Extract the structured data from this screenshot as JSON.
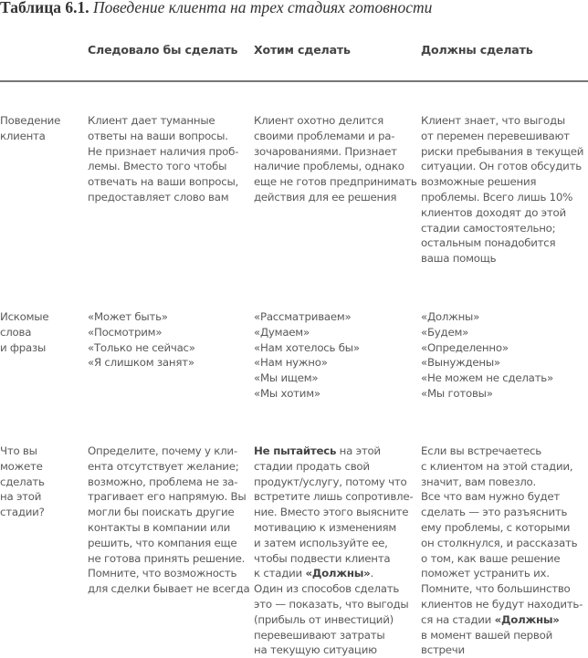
{
  "title": {
    "label": "Таблица 6.1.",
    "text": "Поведение клиента на трех стадиях готовности"
  },
  "columns": [
    "Следовало бы сделать",
    "Хотим сделать",
    "Должны сделать"
  ],
  "rows": [
    {
      "label": [
        "Поведение",
        "клиента"
      ],
      "cells": [
        [
          "Клиент дает туманные",
          "ответы на ваши вопросы.",
          "Не признает наличия проб-",
          "лемы. Вместо того чтобы",
          "отвечать на ваши вопросы,",
          "предоставляет слово вам"
        ],
        [
          "Клиент охотно делится",
          "своими проблемами и ра-",
          "зочарованиями. Признает",
          "наличие проблемы, однако",
          "еще не готов предпринимать",
          "действия для ее решения"
        ],
        [
          "Клиент знает, что выгоды",
          "от перемен перевешивают",
          "риски пребывания в текущей",
          "ситуации. Он готов обсудить",
          "возможные решения",
          "проблемы. Всего лишь 10%",
          "клиентов доходят до этой",
          "стадии самостоятельно;",
          "остальным понадобится",
          "ваша помощь"
        ]
      ]
    },
    {
      "label": [
        "Искомые",
        "слова",
        "и фразы"
      ],
      "cells": [
        [
          "«Может быть»",
          "«Посмотрим»",
          "«Только не сейчас»",
          "«Я слишком занят»"
        ],
        [
          "«Рассматриваем»",
          "«Думаем»",
          "«Нам хотелось бы»",
          "«Нам нужно»",
          "«Мы ищем»",
          "«Мы хотим»"
        ],
        [
          "«Должны»",
          "«Будем»",
          "«Определенно»",
          "«Вынуждены»",
          "«Не можем не сделать»",
          "«Мы готовы»"
        ]
      ]
    },
    {
      "label": [
        "Что вы",
        "можете",
        "сделать",
        "на этой",
        "стадии?"
      ],
      "cells": [
        [
          "Определите, почему у кли-",
          "ента отсутствует желание;",
          "возможно, проблема не за-",
          "трагивает его напрямую. Вы",
          "могли бы поискать другие",
          "контакты в компании или",
          "решить, что компания еще",
          "не готова принять решение.",
          "Помните, что возможность",
          "для сделки бывает не всегда"
        ],
        [
          [
            {
              "t": "Не пытайтесь",
              "b": true
            },
            {
              "t": " на этой"
            }
          ],
          "стадии продать свой",
          "продукт/услугу, потому что",
          "встретите лишь сопротивле-",
          "ние. Вместо этого выясните",
          "мотивацию к изменениям",
          "и затем используйте ее,",
          "чтобы подвести клиента",
          [
            {
              "t": "к стадии "
            },
            {
              "t": "«Должны»",
              "b": true
            },
            {
              "t": "."
            }
          ],
          "Один из способов сделать",
          "это — показать, что выгоды",
          "(прибыль от инвестиций)",
          "перевешивают затраты",
          "на текущую ситуацию"
        ],
        [
          "Если вы встречаетесь",
          "с клиентом на этой стадии,",
          "значит, вам повезло.",
          "Все что вам нужно будет",
          "сделать — это разъяснить",
          "ему проблемы, с которыми",
          "он столкнулся, и рассказать",
          "о том, как ваше решение",
          "поможет устранить их.",
          "Помните, что большинство",
          "клиентов не будут находить-",
          [
            {
              "t": "ся на стадии "
            },
            {
              "t": "«Должны»",
              "b": true
            }
          ],
          "в момент вашей первой",
          "встречи"
        ]
      ]
    }
  ]
}
